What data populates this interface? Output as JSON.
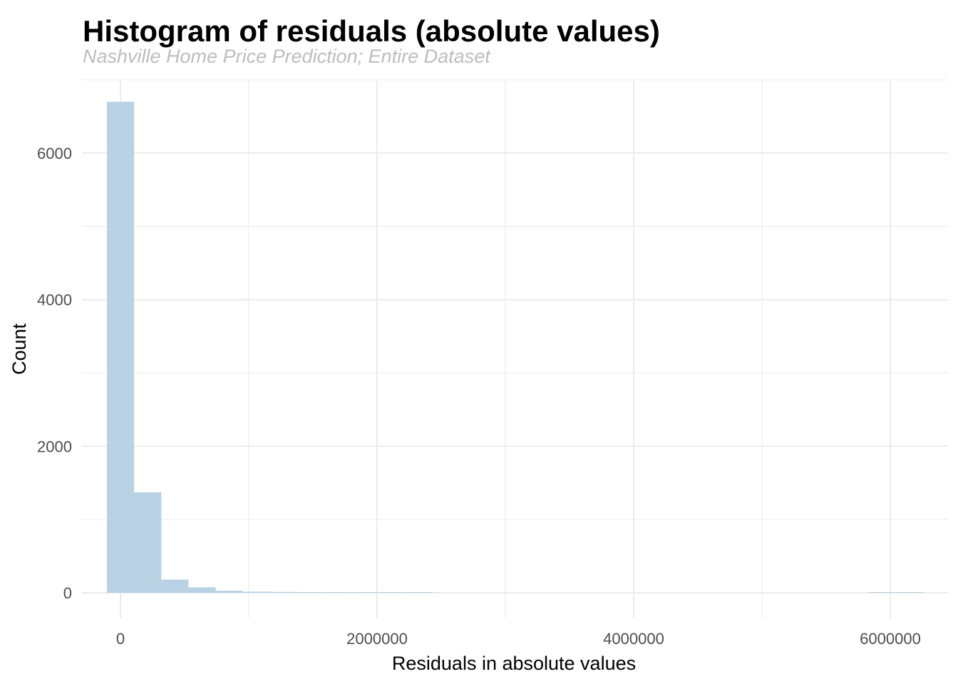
{
  "chart_data": {
    "type": "bar",
    "subtype": "histogram",
    "title": "Histogram of residuals (absolute values)",
    "subtitle": "Nashville Home Price Prediction; Entire Dataset",
    "xlabel": "Residuals in absolute values",
    "ylabel": "Count",
    "xlim": [
      -300000,
      6450000
    ],
    "ylim": [
      -350,
      7000
    ],
    "x_ticks": [
      {
        "value": 0,
        "label": "0"
      },
      {
        "value": 2000000,
        "label": "2000000"
      },
      {
        "value": 4000000,
        "label": "4000000"
      },
      {
        "value": 6000000,
        "label": "6000000"
      }
    ],
    "y_ticks": [
      {
        "value": 0,
        "label": "0"
      },
      {
        "value": 2000,
        "label": "2000"
      },
      {
        "value": 4000,
        "label": "4000"
      },
      {
        "value": 6000,
        "label": "6000"
      }
    ],
    "x_minor_gridlines": [
      1000000,
      3000000,
      5000000
    ],
    "y_minor_gridlines": [
      1000,
      3000,
      5000,
      7000
    ],
    "grid": true,
    "bin_width": 212000,
    "bins": [
      {
        "x0": -106000,
        "x1": 106000,
        "count": 6700
      },
      {
        "x0": 106000,
        "x1": 318000,
        "count": 1370
      },
      {
        "x0": 318000,
        "x1": 530000,
        "count": 180
      },
      {
        "x0": 530000,
        "x1": 742000,
        "count": 75
      },
      {
        "x0": 742000,
        "x1": 954000,
        "count": 28
      },
      {
        "x0": 954000,
        "x1": 1166000,
        "count": 15
      },
      {
        "x0": 1166000,
        "x1": 1378000,
        "count": 12
      },
      {
        "x0": 1378000,
        "x1": 1590000,
        "count": 10
      },
      {
        "x0": 1590000,
        "x1": 1802000,
        "count": 5
      },
      {
        "x0": 1802000,
        "x1": 2014000,
        "count": 4
      },
      {
        "x0": 2014000,
        "x1": 2226000,
        "count": 3
      },
      {
        "x0": 2226000,
        "x1": 2438000,
        "count": 2
      },
      {
        "x0": 5830000,
        "x1": 6042000,
        "count": 1
      },
      {
        "x0": 6042000,
        "x1": 6254000,
        "count": 1
      }
    ],
    "bar_color": "#b8d1e3",
    "grid_color": "#ebebeb"
  }
}
